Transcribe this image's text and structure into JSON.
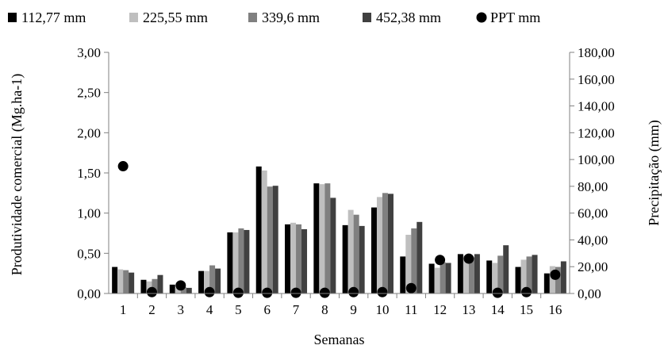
{
  "chart_data": {
    "type": "bar",
    "title": "",
    "xlabel": "Semanas",
    "ylabel": "Produtividade comercial (Mg.ha-1)",
    "y2label": "Precipitação (mm)",
    "ylim": [
      0,
      3
    ],
    "y2lim": [
      0,
      180
    ],
    "yticks": [
      "0,00",
      "0,50",
      "1,00",
      "1,50",
      "2,00",
      "2,50",
      "3,00"
    ],
    "y2ticks": [
      "0,00",
      "20,00",
      "40,00",
      "60,00",
      "80,00",
      "100,00",
      "120,00",
      "140,00",
      "160,00",
      "180,00"
    ],
    "categories": [
      "1",
      "2",
      "3",
      "4",
      "5",
      "6",
      "7",
      "8",
      "9",
      "10",
      "11",
      "12",
      "13",
      "14",
      "15",
      "16"
    ],
    "legend_position": "top",
    "grid": false,
    "series": [
      {
        "name": "112,77 mm",
        "color": "#000000",
        "values": [
          0.33,
          0.17,
          0.11,
          0.28,
          0.76,
          1.58,
          0.86,
          1.37,
          0.85,
          1.07,
          0.46,
          0.37,
          0.49,
          0.41,
          0.33,
          0.25
        ]
      },
      {
        "name": "225,55 mm",
        "color": "#bfbfbf",
        "values": [
          0.3,
          0.15,
          0.07,
          0.28,
          0.76,
          1.53,
          0.88,
          1.36,
          1.04,
          1.2,
          0.73,
          0.32,
          0.47,
          0.38,
          0.42,
          0.34
        ]
      },
      {
        "name": "339,6 mm",
        "color": "#808080",
        "values": [
          0.29,
          0.18,
          0.08,
          0.35,
          0.81,
          1.33,
          0.86,
          1.37,
          0.98,
          1.25,
          0.81,
          0.39,
          0.45,
          0.47,
          0.46,
          0.33
        ]
      },
      {
        "name": "452,38 mm",
        "color": "#404040",
        "values": [
          0.26,
          0.23,
          0.07,
          0.31,
          0.79,
          1.34,
          0.8,
          1.19,
          0.84,
          1.24,
          0.89,
          0.38,
          0.49,
          0.6,
          0.48,
          0.4
        ]
      }
    ],
    "scatter_series": {
      "name": "PPT mm",
      "color": "#000000",
      "axis": "secondary",
      "values": [
        95,
        1,
        6,
        1,
        0.5,
        0.5,
        0.5,
        0.5,
        1,
        1,
        4,
        25,
        26,
        0.5,
        1,
        14
      ]
    }
  }
}
